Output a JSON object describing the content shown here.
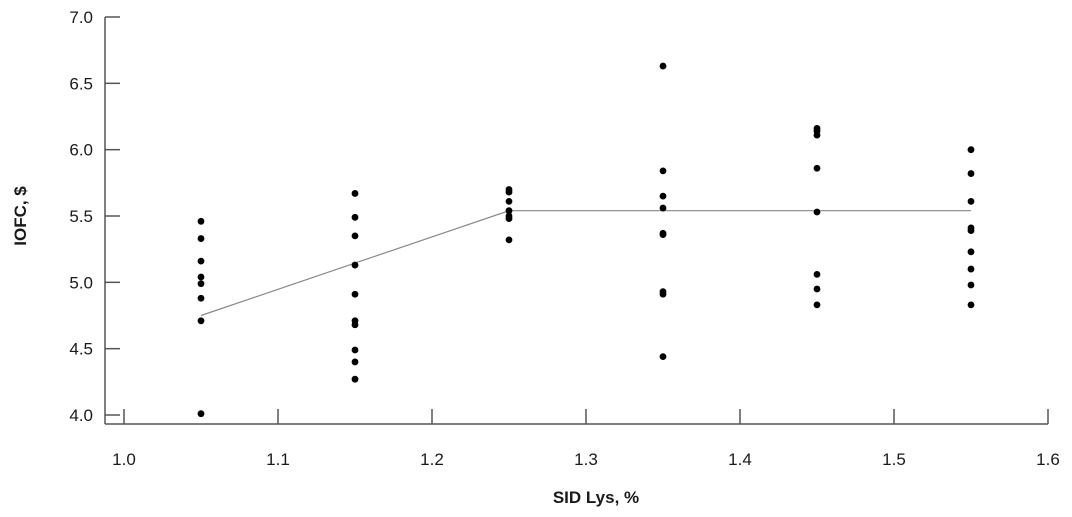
{
  "chart_data": {
    "type": "scatter",
    "xlabel": "SID Lys, %",
    "ylabel": "IOFC, $",
    "xlim": [
      1.0,
      1.6
    ],
    "ylim": [
      4.0,
      7.0
    ],
    "x_ticks": [
      "1.0",
      "1.1",
      "1.2",
      "1.3",
      "1.4",
      "1.5",
      "1.6"
    ],
    "y_ticks": [
      "4.0",
      "4.5",
      "5.0",
      "5.5",
      "6.0",
      "6.5",
      "7.0"
    ],
    "grid": false,
    "series": [
      {
        "type": "scatter",
        "points": [
          {
            "x": 1.05,
            "y": 5.46
          },
          {
            "x": 1.05,
            "y": 5.33
          },
          {
            "x": 1.05,
            "y": 5.16
          },
          {
            "x": 1.05,
            "y": 5.04
          },
          {
            "x": 1.05,
            "y": 4.99
          },
          {
            "x": 1.05,
            "y": 4.88
          },
          {
            "x": 1.05,
            "y": 4.71
          },
          {
            "x": 1.05,
            "y": 4.01
          },
          {
            "x": 1.15,
            "y": 5.67
          },
          {
            "x": 1.15,
            "y": 5.49
          },
          {
            "x": 1.15,
            "y": 5.35
          },
          {
            "x": 1.15,
            "y": 5.13
          },
          {
            "x": 1.15,
            "y": 4.91
          },
          {
            "x": 1.15,
            "y": 4.71
          },
          {
            "x": 1.15,
            "y": 4.68
          },
          {
            "x": 1.15,
            "y": 4.49
          },
          {
            "x": 1.15,
            "y": 4.4
          },
          {
            "x": 1.15,
            "y": 4.27
          },
          {
            "x": 1.25,
            "y": 5.7
          },
          {
            "x": 1.25,
            "y": 5.68
          },
          {
            "x": 1.25,
            "y": 5.61
          },
          {
            "x": 1.25,
            "y": 5.54
          },
          {
            "x": 1.25,
            "y": 5.5
          },
          {
            "x": 1.25,
            "y": 5.48
          },
          {
            "x": 1.25,
            "y": 5.32
          },
          {
            "x": 1.35,
            "y": 6.63
          },
          {
            "x": 1.35,
            "y": 5.84
          },
          {
            "x": 1.35,
            "y": 5.65
          },
          {
            "x": 1.35,
            "y": 5.56
          },
          {
            "x": 1.35,
            "y": 5.37
          },
          {
            "x": 1.35,
            "y": 5.36
          },
          {
            "x": 1.35,
            "y": 4.93
          },
          {
            "x": 1.35,
            "y": 4.91
          },
          {
            "x": 1.35,
            "y": 4.44
          },
          {
            "x": 1.45,
            "y": 6.16
          },
          {
            "x": 1.45,
            "y": 6.14
          },
          {
            "x": 1.45,
            "y": 6.11
          },
          {
            "x": 1.45,
            "y": 5.86
          },
          {
            "x": 1.45,
            "y": 5.53
          },
          {
            "x": 1.45,
            "y": 5.06
          },
          {
            "x": 1.45,
            "y": 4.95
          },
          {
            "x": 1.45,
            "y": 4.83
          },
          {
            "x": 1.55,
            "y": 6.0
          },
          {
            "x": 1.55,
            "y": 5.82
          },
          {
            "x": 1.55,
            "y": 5.61
          },
          {
            "x": 1.55,
            "y": 5.41
          },
          {
            "x": 1.55,
            "y": 5.39
          },
          {
            "x": 1.55,
            "y": 5.23
          },
          {
            "x": 1.55,
            "y": 5.1
          },
          {
            "x": 1.55,
            "y": 4.98
          },
          {
            "x": 1.55,
            "y": 4.83
          }
        ]
      },
      {
        "type": "line",
        "points": [
          {
            "x": 1.05,
            "y": 4.75
          },
          {
            "x": 1.25,
            "y": 5.54
          },
          {
            "x": 1.55,
            "y": 5.54
          }
        ]
      }
    ]
  }
}
